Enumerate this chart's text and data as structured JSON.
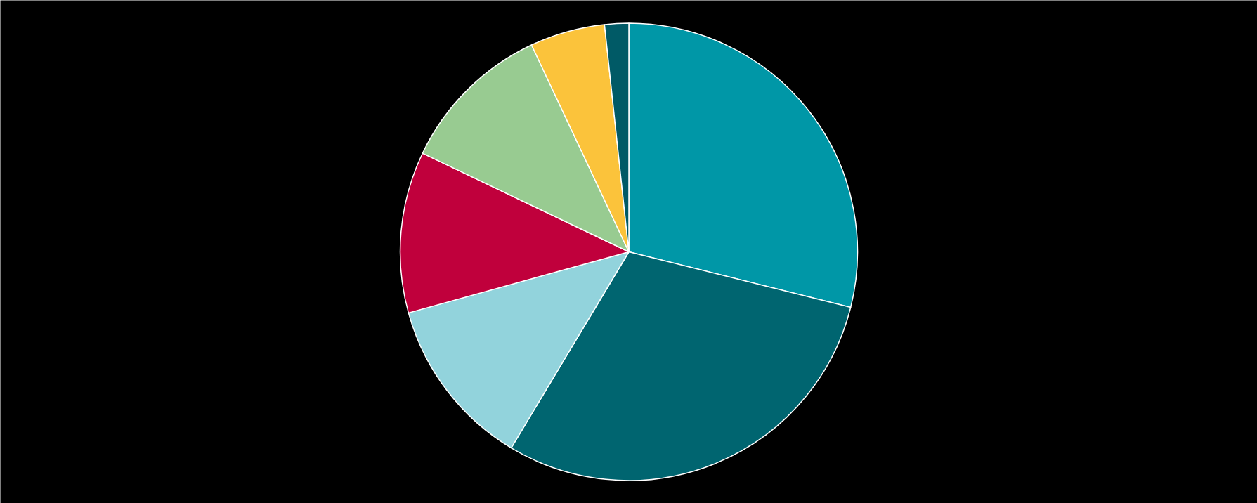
{
  "chart_data": {
    "type": "pie",
    "categories": [
      null,
      null,
      null,
      null,
      null,
      null,
      null
    ],
    "values": [
      28.9,
      29.7,
      12.1,
      11.4,
      10.9,
      5.3,
      1.7
    ],
    "colors": [
      "#0097a7",
      "#006570",
      "#92d3dc",
      "#c0003c",
      "#98cb91",
      "#fbc33b",
      "#005a66"
    ]
  }
}
